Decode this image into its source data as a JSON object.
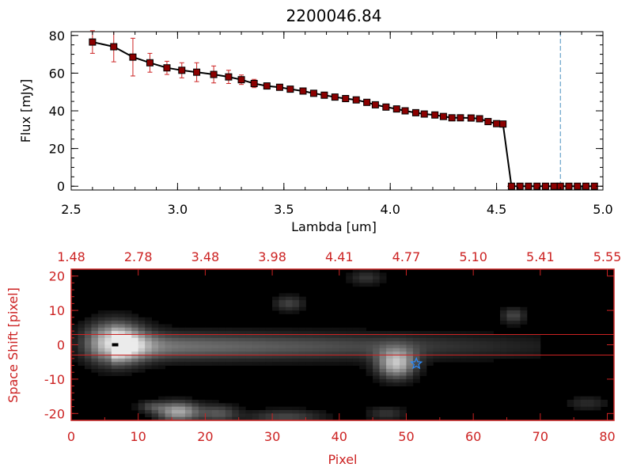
{
  "chart_data": [
    {
      "type": "line",
      "title": "2200046.84",
      "xlabel": "Lambda [um]",
      "ylabel": "Flux [mJy]",
      "xlim": [
        2.5,
        5.0
      ],
      "ylim": [
        -2,
        82
      ],
      "xticks": [
        "2.5",
        "3.0",
        "3.5",
        "4.0",
        "4.5",
        "5.0"
      ],
      "yticks": [
        "0",
        "20",
        "40",
        "60",
        "80"
      ],
      "grid": false,
      "colors": {
        "line": "#000000",
        "marker": "#8b0000",
        "errorbar": "#cc2222",
        "vline": "#4a90c0",
        "hline": "#cc2222"
      },
      "vline_x": 4.8,
      "x": [
        2.6,
        2.7,
        2.79,
        2.87,
        2.95,
        3.02,
        3.09,
        3.17,
        3.24,
        3.3,
        3.36,
        3.42,
        3.48,
        3.53,
        3.59,
        3.64,
        3.69,
        3.74,
        3.79,
        3.84,
        3.89,
        3.93,
        3.98,
        4.03,
        4.07,
        4.12,
        4.16,
        4.21,
        4.25,
        4.29,
        4.33,
        4.38,
        4.42,
        4.46,
        4.5,
        4.53,
        4.57,
        4.61,
        4.65,
        4.69,
        4.73,
        4.77,
        4.8,
        4.84,
        4.88,
        4.92,
        4.96
      ],
      "y": [
        76.5,
        74.0,
        68.5,
        65.5,
        62.8,
        61.5,
        60.5,
        59.3,
        58.0,
        56.5,
        54.5,
        53.2,
        52.5,
        51.5,
        50.5,
        49.3,
        48.3,
        47.3,
        46.5,
        45.8,
        44.5,
        43.2,
        42.0,
        41.0,
        40.0,
        39.0,
        38.3,
        37.8,
        37.0,
        36.3,
        36.3,
        36.2,
        35.8,
        34.3,
        33.2,
        33.0,
        0,
        0,
        0,
        0,
        0,
        0,
        0,
        0,
        0,
        0,
        0
      ],
      "yerr": [
        6,
        8,
        10,
        5,
        3.5,
        4,
        5,
        4.5,
        3.5,
        2.5,
        2.2,
        1.3,
        1,
        1,
        0.8,
        0.8,
        0.8,
        0.8,
        0.7,
        0.7,
        0.7,
        0.7,
        0.7,
        0.7,
        0.7,
        0.7,
        0.7,
        0.7,
        0.7,
        0.7,
        0.7,
        0.7,
        0.7,
        0.7,
        0.7,
        0.7,
        0.7,
        0,
        0,
        0,
        0,
        0,
        0,
        0,
        0,
        0,
        0
      ]
    },
    {
      "type": "heatmap",
      "xlabel": "Pixel",
      "ylabel": "Space Shift [pixel]",
      "xlim": [
        0,
        81
      ],
      "ylim": [
        -22,
        22
      ],
      "xticks": [
        "0",
        "10",
        "20",
        "30",
        "40",
        "50",
        "60",
        "70",
        "80"
      ],
      "yticks": [
        "-20",
        "-10",
        "0",
        "10",
        "20"
      ],
      "top_ticks": [
        "1.48",
        "2.78",
        "3.48",
        "3.98",
        "4.41",
        "4.77",
        "5.10",
        "5.41",
        "5.55"
      ],
      "hlines": [
        3,
        -3
      ],
      "star": {
        "x": 51.5,
        "y": -5.5,
        "color": "#2a8cff"
      },
      "sources": [
        {
          "x": 6.5,
          "y": 0.5,
          "peak": 1.0,
          "sx": 3.0,
          "sy": 4.0
        },
        {
          "x": 48.5,
          "y": -5.5,
          "peak": 0.8,
          "sx": 2.0,
          "sy": 3.0
        },
        {
          "x": 16,
          "y": -19.5,
          "peak": 0.72,
          "sx": 2.2,
          "sy": 2.0
        },
        {
          "x": 22,
          "y": -20,
          "peak": 0.35,
          "sx": 2.0,
          "sy": 1.8
        },
        {
          "x": 32,
          "y": -21,
          "peak": 0.3,
          "sx": 4.0,
          "sy": 1.5
        },
        {
          "x": 47,
          "y": -20,
          "peak": 0.22,
          "sx": 2.0,
          "sy": 1.5
        },
        {
          "x": 32.5,
          "y": 12,
          "peak": 0.28,
          "sx": 1.6,
          "sy": 1.6
        },
        {
          "x": 44,
          "y": 19.5,
          "peak": 0.22,
          "sx": 1.8,
          "sy": 1.5
        },
        {
          "x": 66,
          "y": 8.5,
          "peak": 0.3,
          "sx": 1.3,
          "sy": 1.6
        },
        {
          "x": 77,
          "y": -17,
          "peak": 0.18,
          "sx": 2.2,
          "sy": 1.5
        },
        {
          "x": 12,
          "y": -18,
          "peak": 0.25,
          "sx": 1.5,
          "sy": 1.2
        }
      ],
      "trace": {
        "start": 6,
        "end": 70,
        "center": -0.5,
        "width": 2.8,
        "amp_start": 0.55,
        "amp_end": 0.12
      }
    }
  ]
}
